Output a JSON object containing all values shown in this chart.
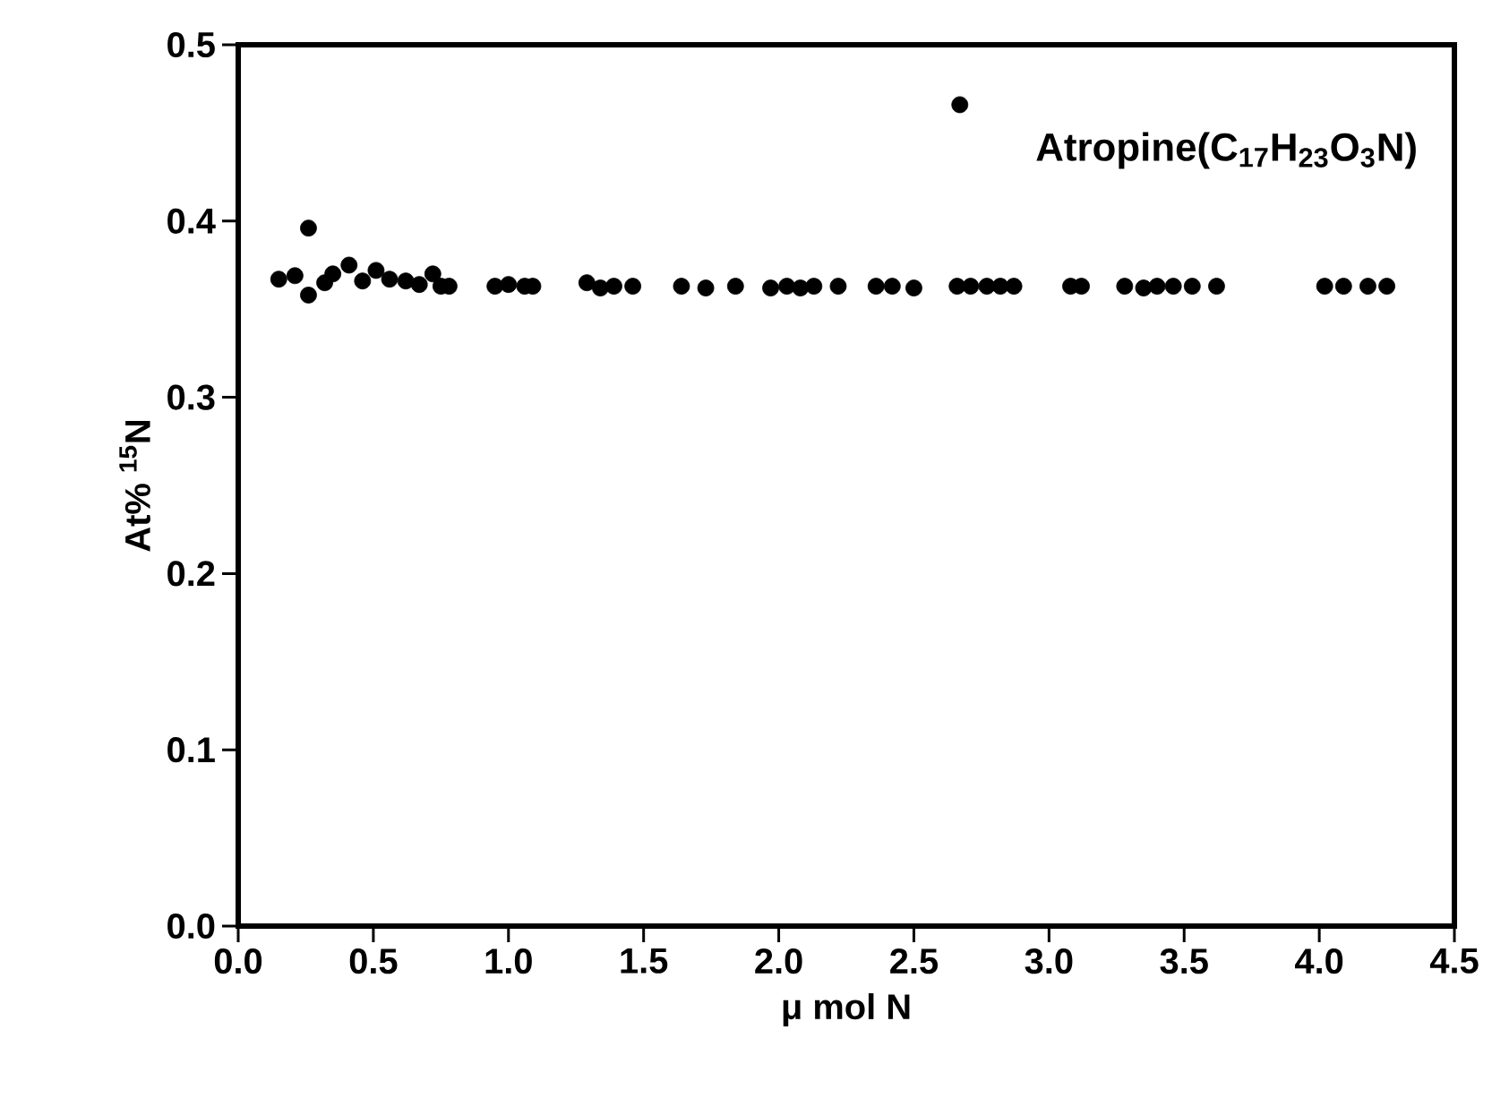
{
  "chart_data": {
    "type": "scatter",
    "xlabel": "μ mol N",
    "ylabel": "At% $^{15}$N",
    "annotations": [
      "Atropine(C$_{17}$H$_{23}$O$_{3}$N)"
    ],
    "x": [
      0.15,
      0.21,
      0.26,
      0.26,
      0.32,
      0.35,
      0.41,
      0.46,
      0.51,
      0.56,
      0.62,
      0.67,
      0.72,
      0.75,
      0.78,
      0.95,
      1.0,
      1.06,
      1.09,
      1.29,
      1.34,
      1.39,
      1.46,
      1.64,
      1.73,
      1.84,
      1.97,
      2.03,
      2.08,
      2.13,
      2.22,
      2.36,
      2.42,
      2.5,
      2.67,
      2.66,
      2.71,
      2.77,
      2.82,
      2.87,
      3.08,
      3.12,
      3.28,
      3.35,
      3.4,
      3.46,
      3.53,
      3.62,
      4.02,
      4.09,
      4.18,
      4.25
    ],
    "series": [
      {
        "color": "#000000",
        "values": [
          0.367,
          0.369,
          0.396,
          0.358,
          0.365,
          0.37,
          0.375,
          0.366,
          0.372,
          0.367,
          0.366,
          0.364,
          0.37,
          0.363,
          0.363,
          0.363,
          0.364,
          0.363,
          0.363,
          0.365,
          0.362,
          0.363,
          0.363,
          0.363,
          0.362,
          0.363,
          0.362,
          0.363,
          0.362,
          0.363,
          0.363,
          0.363,
          0.363,
          0.362,
          0.466,
          0.363,
          0.363,
          0.363,
          0.363,
          0.363,
          0.363,
          0.363,
          0.363,
          0.362,
          0.363,
          0.363,
          0.363,
          0.363,
          0.363,
          0.363,
          0.363,
          0.363
        ]
      }
    ],
    "xlim": [
      0,
      4.5
    ],
    "ylim": [
      0,
      0.5
    ],
    "xticks": [
      {
        "value": 0,
        "label": "0.0"
      },
      0.5,
      {
        "value": 1,
        "label": "1.0"
      },
      1.5,
      {
        "value": 2,
        "label": "2.0"
      },
      2.5,
      {
        "value": 3,
        "label": "3.0"
      },
      3.5,
      {
        "value": 4,
        "label": "4.0"
      },
      4.5
    ],
    "yticks": [
      {
        "value": 0,
        "label": "0.0"
      },
      0.1,
      0.2,
      0.3,
      0.4,
      0.5
    ],
    "grid": false,
    "marker": "circle"
  }
}
